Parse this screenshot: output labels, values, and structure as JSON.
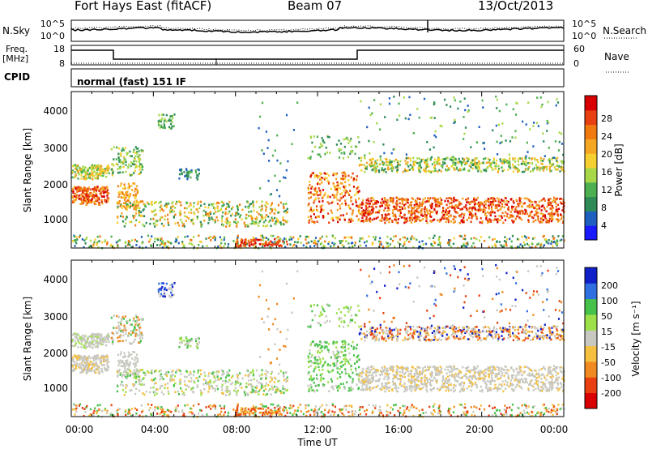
{
  "header": {
    "station": "Fort Hays East (fitACF)",
    "beam": "Beam 07",
    "date": "13/Oct/2013"
  },
  "strip": {
    "nsky_label": "N.Sky",
    "nsearch_label": "N.Search",
    "noise_ticks": [
      "10^5",
      "10^0"
    ],
    "freq_label": "Freq.",
    "freq_unit": "[MHz]",
    "freq_ticks": [
      "18",
      "8"
    ],
    "nave_label": "Nave",
    "nave_ticks": [
      "60",
      "0"
    ],
    "cpid_label": "CPID",
    "cpid_text": "normal (fast) 151 IF"
  },
  "chart_data": [
    {
      "type": "heatmap",
      "title": "",
      "ylabel": "Slant Range [km]",
      "ylim": [
        180,
        4500
      ],
      "yticks": [
        "1000",
        "2000",
        "3000",
        "4000"
      ],
      "colorbar_label": "Power [dB]",
      "colorbar_ticks": [
        "4",
        "8",
        "12",
        "16",
        "20",
        "24",
        "28"
      ],
      "colorbar_colors": [
        "#1a1aff",
        "#1f5fbf",
        "#2e8b57",
        "#4caf50",
        "#a8d848",
        "#f6d030",
        "#f5a623",
        "#f07a10",
        "#e84010",
        "#d80000"
      ]
    },
    {
      "type": "heatmap",
      "title": "",
      "ylabel": "Slant Range [km]",
      "ylim": [
        180,
        4500
      ],
      "yticks": [
        "1000",
        "2000",
        "3000",
        "4000"
      ],
      "colorbar_label": "Velocity [m s⁻¹]",
      "colorbar_ticks": [
        "200",
        "100",
        "50",
        "15",
        "-15",
        "-50",
        "-100",
        "-200"
      ],
      "colorbar_colors": [
        "#1020c8",
        "#2f6fe0",
        "#46c24a",
        "#9ee04a",
        "#c8c8c0",
        "#f5c040",
        "#f08a20",
        "#e84010",
        "#d80000"
      ]
    }
  ],
  "xaxis": {
    "ticks": [
      "00:00",
      "04:00",
      "08:00",
      "12:00",
      "16:00",
      "20:00",
      "00:00"
    ],
    "label": "Time UT"
  }
}
